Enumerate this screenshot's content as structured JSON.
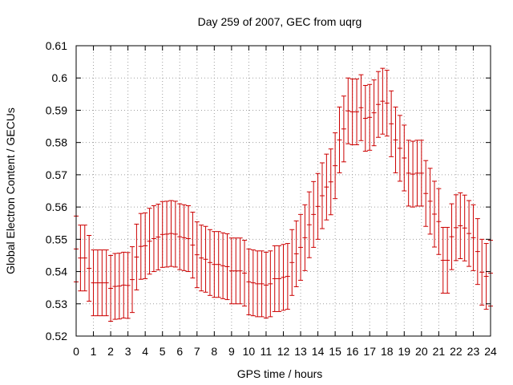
{
  "chart_data": {
    "type": "errorbar",
    "title": "Day 259 of 2007, GEC from uqrg",
    "xlabel": "GPS time / hours",
    "ylabel": "Global Electron Content / GECUs",
    "xlim": [
      0,
      24
    ],
    "ylim": [
      0.52,
      0.61
    ],
    "xticks": [
      "0",
      "1",
      "2",
      "3",
      "4",
      "5",
      "6",
      "7",
      "8",
      "9",
      "10",
      "11",
      "12",
      "13",
      "14",
      "15",
      "16",
      "17",
      "18",
      "19",
      "20",
      "21",
      "22",
      "23",
      "24"
    ],
    "yticks": [
      "0.52",
      "0.53",
      "0.54",
      "0.55",
      "0.56",
      "0.57",
      "0.58",
      "0.59",
      "0.6",
      "0.61"
    ],
    "grid": true,
    "series_color": "#cc0000",
    "error": 0.0102,
    "x": [
      0,
      0.25,
      0.5,
      0.75,
      1,
      1.25,
      1.5,
      1.75,
      2,
      2.25,
      2.5,
      2.75,
      3,
      3.25,
      3.5,
      3.75,
      4,
      4.25,
      4.5,
      4.75,
      5,
      5.25,
      5.5,
      5.75,
      6,
      6.25,
      6.5,
      6.75,
      7,
      7.25,
      7.5,
      7.75,
      8,
      8.25,
      8.5,
      8.75,
      9,
      9.25,
      9.5,
      9.75,
      10,
      10.25,
      10.5,
      10.75,
      11,
      11.25,
      11.5,
      11.75,
      12,
      12.25,
      12.5,
      12.75,
      13,
      13.25,
      13.5,
      13.75,
      14,
      14.25,
      14.5,
      14.75,
      15,
      15.25,
      15.5,
      15.75,
      16,
      16.25,
      16.5,
      16.75,
      17,
      17.25,
      17.5,
      17.75,
      18,
      18.25,
      18.5,
      18.75,
      19,
      19.25,
      19.5,
      19.75,
      20,
      20.25,
      20.5,
      20.75,
      21,
      21.25,
      21.5,
      21.75,
      22,
      22.25,
      22.5,
      22.75,
      23,
      23.25,
      23.5,
      23.75,
      24
    ],
    "y": [
      0.547,
      0.5442,
      0.5442,
      0.541,
      0.5365,
      0.5365,
      0.5365,
      0.5365,
      0.5348,
      0.5354,
      0.5355,
      0.5358,
      0.5357,
      0.5375,
      0.5445,
      0.5478,
      0.548,
      0.5494,
      0.5502,
      0.5507,
      0.5515,
      0.5516,
      0.5518,
      0.5516,
      0.5508,
      0.5505,
      0.5502,
      0.5482,
      0.5452,
      0.5442,
      0.5438,
      0.5428,
      0.5422,
      0.5422,
      0.5418,
      0.5415,
      0.5402,
      0.5402,
      0.5402,
      0.5395,
      0.5368,
      0.5365,
      0.5362,
      0.5362,
      0.5358,
      0.5362,
      0.5378,
      0.5378,
      0.5382,
      0.5385,
      0.5428,
      0.5455,
      0.5475,
      0.5505,
      0.5545,
      0.5577,
      0.5602,
      0.5635,
      0.5662,
      0.5678,
      0.5728,
      0.5808,
      0.5842,
      0.5898,
      0.5895,
      0.5895,
      0.5908,
      0.5875,
      0.5878,
      0.5892,
      0.5918,
      0.5928,
      0.5922,
      0.5858,
      0.5808,
      0.5782,
      0.5752,
      0.5705,
      0.5702,
      0.5705,
      0.5705,
      0.5642,
      0.5618,
      0.5578,
      0.5555,
      0.5435,
      0.5435,
      0.5508,
      0.5536,
      0.5542,
      0.5535,
      0.5518,
      0.5505,
      0.5462,
      0.5398,
      0.5385,
      0.5395
    ]
  }
}
